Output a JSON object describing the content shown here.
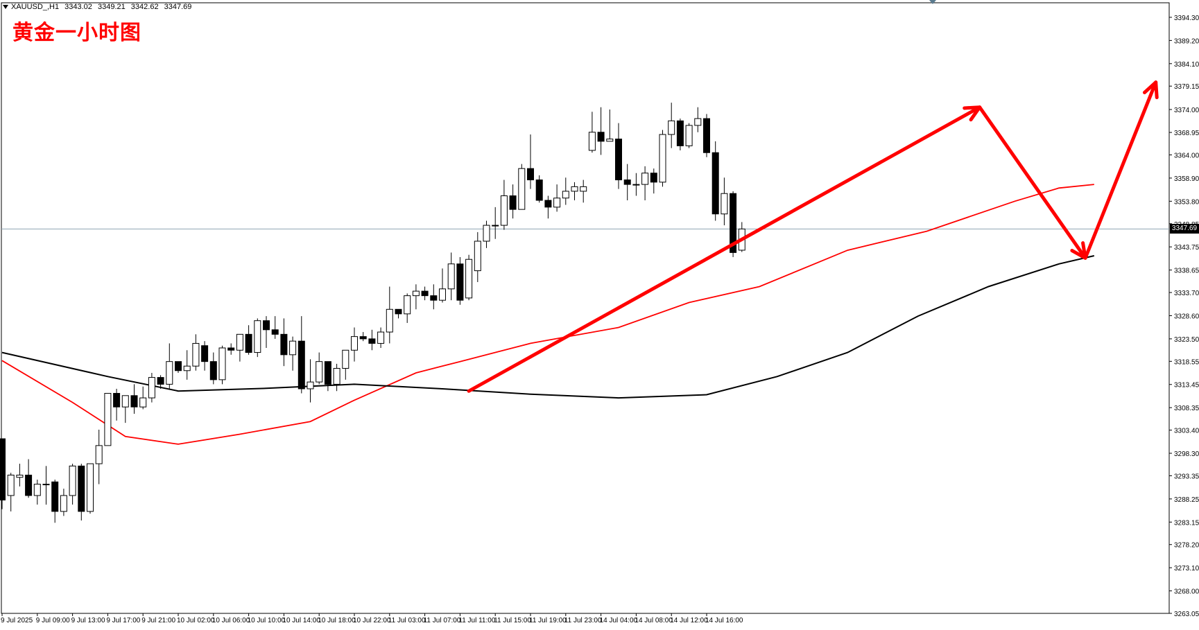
{
  "symbol": "XAUUSD_,H1",
  "ohlc": {
    "open": "3343.02",
    "high": "3349.21",
    "low": "3342.62",
    "close": "3347.69"
  },
  "overlay_title": "黄金一小时图",
  "current_price_label": "3347.69",
  "colors": {
    "background": "#ffffff",
    "axis": "#000000",
    "bull_body": "#ffffff",
    "bear_body": "#000000",
    "ma_fast": "#ff0000",
    "ma_slow": "#000000",
    "price_line": "#8ea4b3",
    "arrow": "#ff0000",
    "title": "#ff0000"
  },
  "chart_data": {
    "type": "candlestick",
    "title": "",
    "xlabel": "",
    "ylabel": "",
    "ylim": [
      3263.05,
      3397.5
    ],
    "y_ticks": [
      "3394.30",
      "3389.20",
      "3384.10",
      "3379.15",
      "3374.00",
      "3368.95",
      "3364.00",
      "3358.90",
      "3353.80",
      "3348.85",
      "3343.75",
      "3338.65",
      "3333.70",
      "3328.60",
      "3323.50",
      "3318.55",
      "3313.45",
      "3308.35",
      "3303.40",
      "3298.30",
      "3293.35",
      "3288.25",
      "3283.15",
      "3278.20",
      "3273.10",
      "3268.00",
      "3263.05"
    ],
    "x_ticks": [
      "9 Jul 2025",
      "9 Jul 09:00",
      "9 Jul 13:00",
      "9 Jul 17:00",
      "9 Jul 21:00",
      "10 Jul 02:00",
      "10 Jul 06:00",
      "10 Jul 10:00",
      "10 Jul 14:00",
      "10 Jul 18:00",
      "10 Jul 22:00",
      "11 Jul 03:00",
      "11 Jul 07:00",
      "11 Jul 11:00",
      "11 Jul 15:00",
      "11 Jul 19:00",
      "11 Jul 23:00",
      "14 Jul 04:00",
      "14 Jul 08:00",
      "14 Jul 12:00",
      "14 Jul 16:00"
    ],
    "candles": [
      [
        3301.5,
        3301.5,
        3286.0,
        3288.0
      ],
      [
        3289.0,
        3294.0,
        3285.5,
        3293.5
      ],
      [
        3293.0,
        3296.0,
        3291.0,
        3293.5
      ],
      [
        3293.5,
        3297.0,
        3288.5,
        3289.0
      ],
      [
        3289.0,
        3292.5,
        3287.0,
        3291.5
      ],
      [
        3291.5,
        3295.5,
        3287.0,
        3291.5
      ],
      [
        3292.0,
        3292.5,
        3283.0,
        3285.5
      ],
      [
        3285.5,
        3290.5,
        3284.5,
        3289.0
      ],
      [
        3289.0,
        3296.0,
        3287.0,
        3295.5
      ],
      [
        3295.5,
        3296.0,
        3283.5,
        3285.5
      ],
      [
        3285.5,
        3296.0,
        3285.0,
        3296.0
      ],
      [
        3296.0,
        3303.5,
        3291.5,
        3300.0
      ],
      [
        3300.0,
        3311.5,
        3300.0,
        3311.5
      ],
      [
        3311.5,
        3312.5,
        3305.5,
        3308.5
      ],
      [
        3308.5,
        3311.0,
        3305.0,
        3311.0
      ],
      [
        3311.0,
        3313.5,
        3307.0,
        3308.5
      ],
      [
        3308.5,
        3313.0,
        3308.0,
        3310.5
      ],
      [
        3310.5,
        3316.0,
        3309.5,
        3315.0
      ],
      [
        3315.0,
        3315.5,
        3312.5,
        3313.5
      ],
      [
        3313.5,
        3322.5,
        3312.5,
        3318.5
      ],
      [
        3318.5,
        3318.5,
        3316.0,
        3316.5
      ],
      [
        3316.5,
        3321.0,
        3314.5,
        3317.5
      ],
      [
        3317.5,
        3324.5,
        3316.5,
        3322.5
      ],
      [
        3322.0,
        3323.0,
        3316.5,
        3318.5
      ],
      [
        3318.5,
        3320.5,
        3313.5,
        3314.5
      ],
      [
        3314.5,
        3322.0,
        3313.5,
        3321.5
      ],
      [
        3321.5,
        3322.5,
        3320.0,
        3321.0
      ],
      [
        3321.0,
        3324.5,
        3318.5,
        3324.5
      ],
      [
        3324.5,
        3326.5,
        3320.0,
        3320.5
      ],
      [
        3320.5,
        3328.0,
        3319.5,
        3327.5
      ],
      [
        3327.5,
        3328.5,
        3321.5,
        3325.5
      ],
      [
        3325.5,
        3328.5,
        3323.5,
        3324.5
      ],
      [
        3324.5,
        3328.0,
        3317.5,
        3320.0
      ],
      [
        3320.0,
        3324.0,
        3316.5,
        3323.0
      ],
      [
        3323.0,
        3328.5,
        3311.5,
        3312.5
      ],
      [
        3312.5,
        3319.0,
        3309.5,
        3314.0
      ],
      [
        3314.0,
        3320.5,
        3313.5,
        3318.5
      ],
      [
        3318.5,
        3318.5,
        3312.0,
        3313.5
      ],
      [
        3313.5,
        3318.0,
        3312.0,
        3317.0
      ],
      [
        3317.0,
        3321.0,
        3314.5,
        3321.0
      ],
      [
        3321.0,
        3326.0,
        3318.5,
        3324.0
      ],
      [
        3324.0,
        3325.0,
        3323.0,
        3323.5
      ],
      [
        3323.5,
        3325.5,
        3321.0,
        3322.5
      ],
      [
        3322.5,
        3326.0,
        3321.5,
        3325.0
      ],
      [
        3325.0,
        3335.0,
        3322.5,
        3330.0
      ],
      [
        3330.0,
        3330.0,
        3328.0,
        3329.0
      ],
      [
        3329.0,
        3333.5,
        3327.0,
        3333.0
      ],
      [
        3333.0,
        3335.5,
        3330.0,
        3334.0
      ],
      [
        3334.0,
        3335.0,
        3332.0,
        3333.0
      ],
      [
        3333.0,
        3335.5,
        3330.0,
        3332.0
      ],
      [
        3332.0,
        3339.0,
        3331.5,
        3334.5
      ],
      [
        3334.5,
        3342.5,
        3332.0,
        3340.0
      ],
      [
        3340.0,
        3341.5,
        3331.0,
        3332.0
      ],
      [
        3332.5,
        3342.0,
        3332.0,
        3341.0
      ],
      [
        3338.5,
        3347.0,
        3336.0,
        3345.0
      ],
      [
        3345.0,
        3349.5,
        3343.5,
        3348.5
      ],
      [
        3348.5,
        3352.5,
        3345.5,
        3348.5
      ],
      [
        3348.5,
        3358.5,
        3347.5,
        3355.0
      ],
      [
        3355.0,
        3357.5,
        3350.0,
        3352.0
      ],
      [
        3352.0,
        3362.0,
        3352.0,
        3361.0
      ],
      [
        3361.0,
        3368.5,
        3356.5,
        3358.5
      ],
      [
        3358.5,
        3359.5,
        3353.5,
        3354.0
      ],
      [
        3354.0,
        3355.0,
        3350.0,
        3352.5
      ],
      [
        3352.5,
        3357.5,
        3351.5,
        3354.5
      ],
      [
        3354.5,
        3359.0,
        3353.0,
        3356.0
      ],
      [
        3356.0,
        3358.0,
        3354.0,
        3357.0
      ],
      [
        3356.0,
        3358.5,
        3353.5,
        3357.0
      ],
      [
        3365.0,
        3373.5,
        3364.5,
        3369.0
      ],
      [
        3369.0,
        3374.5,
        3364.0,
        3367.0
      ],
      [
        3367.0,
        3374.0,
        3367.0,
        3367.5
      ],
      [
        3367.5,
        3371.0,
        3356.5,
        3358.5
      ],
      [
        3358.5,
        3362.0,
        3354.0,
        3357.5
      ],
      [
        3357.5,
        3360.0,
        3355.0,
        3357.5
      ],
      [
        3357.5,
        3361.5,
        3354.0,
        3360.0
      ],
      [
        3360.0,
        3361.0,
        3355.5,
        3358.0
      ],
      [
        3358.0,
        3369.5,
        3357.0,
        3368.5
      ],
      [
        3368.5,
        3375.5,
        3365.5,
        3371.5
      ],
      [
        3371.5,
        3372.0,
        3365.0,
        3366.0
      ],
      [
        3366.0,
        3371.0,
        3365.5,
        3370.5
      ],
      [
        3370.5,
        3374.5,
        3369.0,
        3372.0
      ],
      [
        3372.0,
        3373.0,
        3363.5,
        3364.5
      ],
      [
        3364.5,
        3367.0,
        3349.5,
        3351.0
      ],
      [
        3351.0,
        3359.0,
        3348.5,
        3355.5
      ],
      [
        3355.5,
        3356.0,
        3341.5,
        3342.5
      ],
      [
        3343.02,
        3349.21,
        3342.62,
        3347.69
      ]
    ],
    "series": [
      {
        "name": "",
        "color": "#ff0000",
        "role": "ma_fast",
        "points": [
          [
            0,
            3318.7
          ],
          [
            8,
            3309.5
          ],
          [
            14,
            3302.0
          ],
          [
            20,
            3300.3
          ],
          [
            27,
            3302.5
          ],
          [
            35,
            3305.3
          ],
          [
            40,
            3310.0
          ],
          [
            47,
            3316.0
          ],
          [
            52,
            3318.5
          ],
          [
            60,
            3322.5
          ],
          [
            70,
            3326.0
          ],
          [
            78,
            3331.5
          ],
          [
            86,
            3335.0
          ],
          [
            96,
            3343.0
          ],
          [
            105,
            3347.2
          ],
          [
            115,
            3353.8
          ],
          [
            120,
            3356.7
          ],
          [
            124,
            3357.5
          ]
        ]
      },
      {
        "name": "",
        "color": "#000000",
        "role": "ma_slow",
        "points": [
          [
            0,
            3320.5
          ],
          [
            12,
            3315.2
          ],
          [
            20,
            3312.0
          ],
          [
            30,
            3312.6
          ],
          [
            40,
            3313.5
          ],
          [
            50,
            3312.5
          ],
          [
            60,
            3311.3
          ],
          [
            70,
            3310.5
          ],
          [
            80,
            3311.2
          ],
          [
            88,
            3315.2
          ],
          [
            96,
            3320.5
          ],
          [
            104,
            3328.5
          ],
          [
            112,
            3335.0
          ],
          [
            120,
            3340.0
          ],
          [
            124,
            3341.8
          ]
        ]
      }
    ],
    "arrows": [
      {
        "from": [
          53,
          3312.0
        ],
        "to": [
          111,
          3374.5
        ]
      },
      {
        "from": [
          111,
          3374.5
        ],
        "to": [
          123,
          3341.3
        ]
      },
      {
        "from": [
          123,
          3341.3
        ],
        "to": [
          131,
          3380.0
        ]
      }
    ],
    "current_price": 3347.69
  }
}
